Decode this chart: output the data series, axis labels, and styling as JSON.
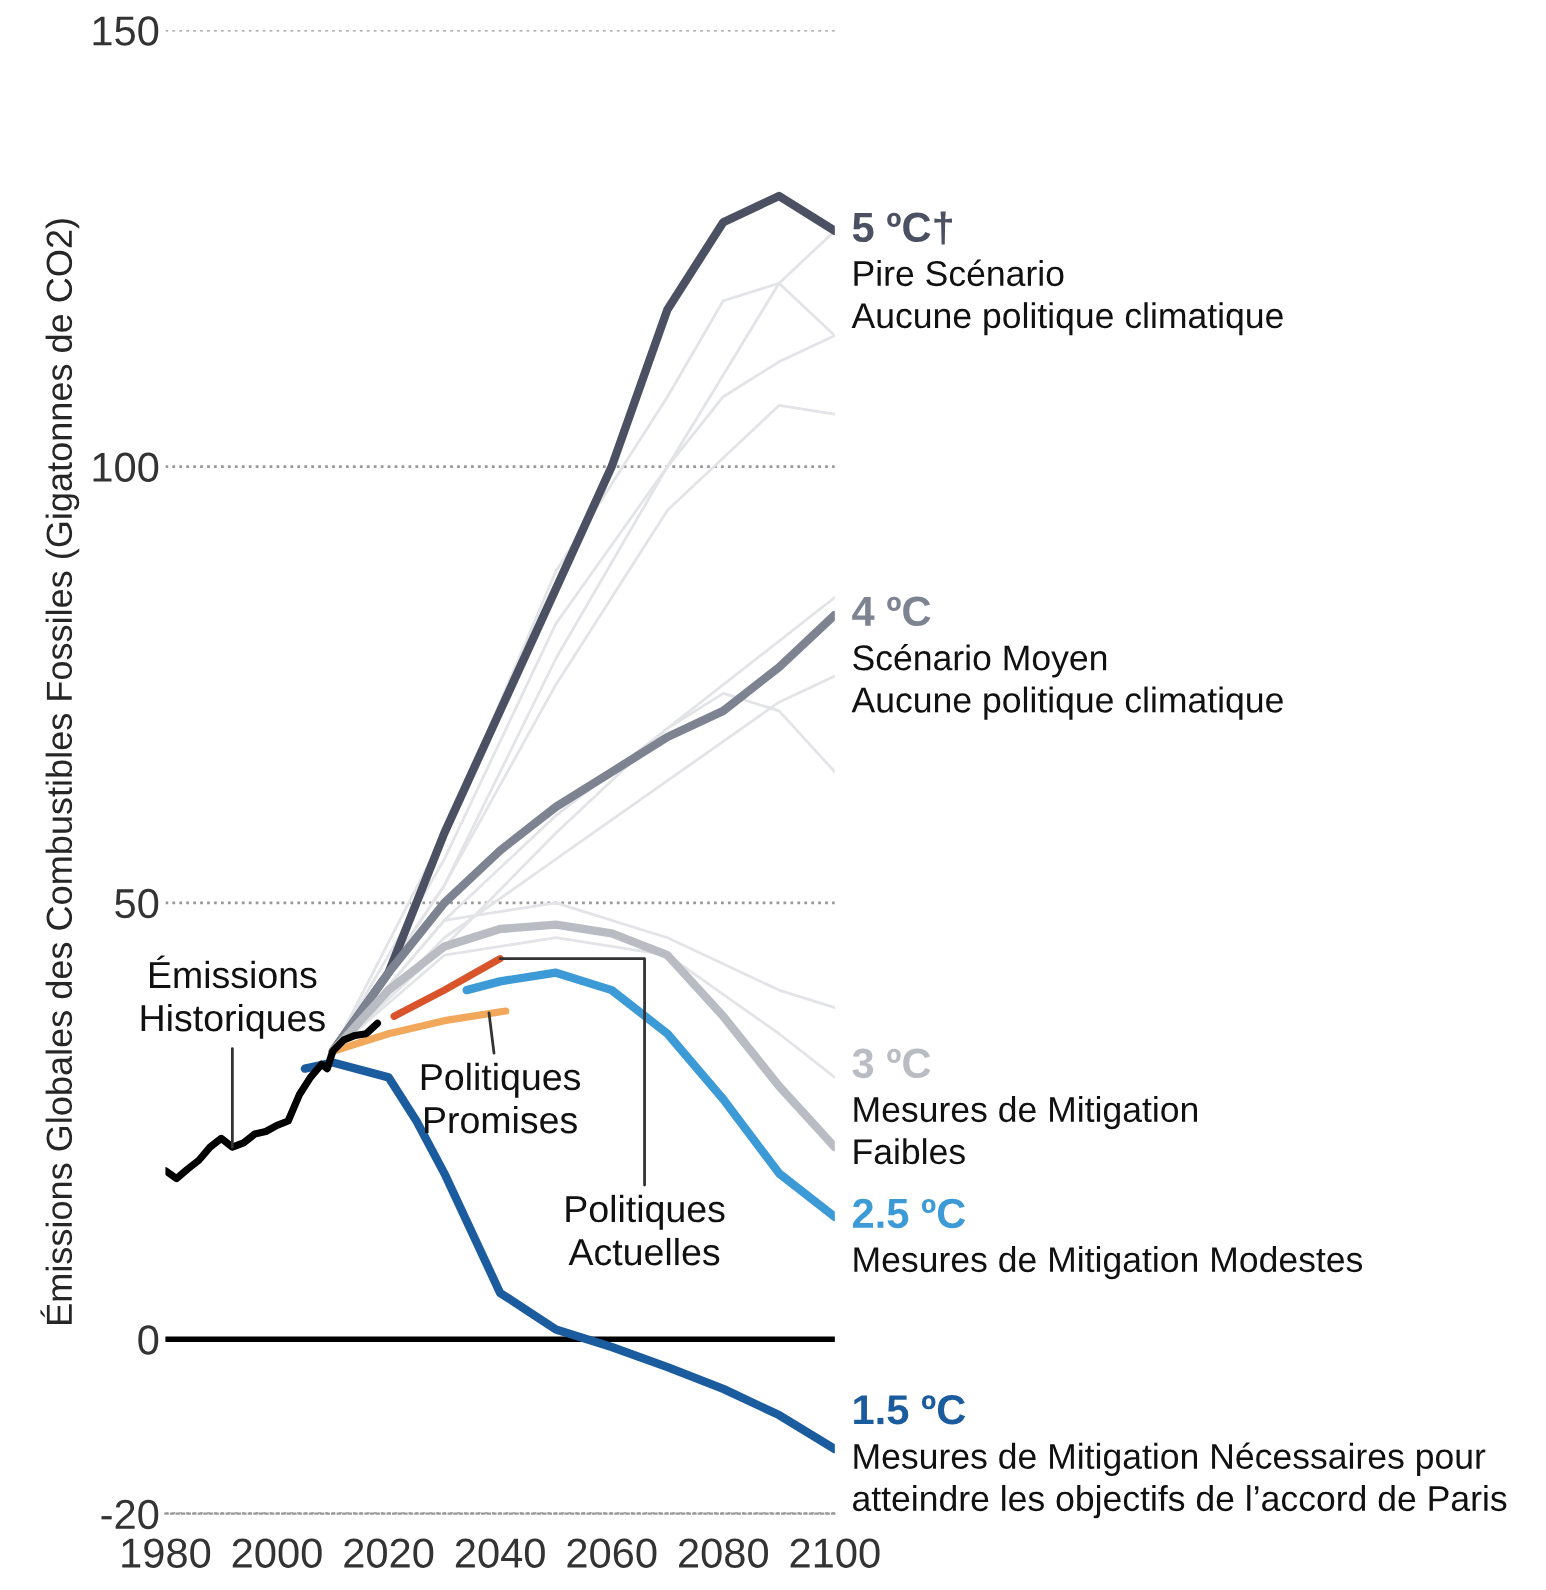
{
  "chart_data": {
    "type": "line",
    "ylabel": "Émissions Globales des Combustibles Fossiles (Gigatonnes de CO2)",
    "xlim": [
      1980,
      2100
    ],
    "xticks": [
      1980,
      2000,
      2020,
      2040,
      2060,
      2080,
      2100
    ],
    "ylim": [
      -20,
      150
    ],
    "yticks": [
      -20,
      0,
      50,
      100,
      150
    ],
    "grid": "y",
    "legend": false,
    "marker": "none",
    "line_style": "solid",
    "ref_lines": [
      {
        "axis": "y",
        "value": 0,
        "color": "#000000",
        "line_style": "solid"
      }
    ],
    "series": [
      {
        "color": "#e3e4e7",
        "x": [
          2010,
          2030,
          2050,
          2070,
          2090,
          2100
        ],
        "values": [
          33,
          52,
          78,
          100,
          121,
          127
        ]
      },
      {
        "color": "#e3e4e7",
        "x": [
          2010,
          2030,
          2050,
          2070,
          2080,
          2090,
          2100
        ],
        "values": [
          33,
          58,
          88,
          108,
          119,
          121,
          115
        ]
      },
      {
        "color": "#e3e4e7",
        "x": [
          2010,
          2030,
          2050,
          2070,
          2080,
          2090,
          2100
        ],
        "values": [
          33,
          55,
          82,
          100,
          108,
          112,
          115
        ]
      },
      {
        "color": "#e3e4e7",
        "x": [
          2010,
          2030,
          2050,
          2070,
          2090,
          2100
        ],
        "values": [
          33,
          52,
          75,
          95,
          107,
          106
        ]
      },
      {
        "color": "#e3e4e7",
        "x": [
          2010,
          2030,
          2050,
          2070,
          2090,
          2100
        ],
        "values": [
          33,
          45,
          58,
          70,
          80,
          85
        ]
      },
      {
        "color": "#e3e4e7",
        "x": [
          2010,
          2030,
          2050,
          2070,
          2080,
          2090,
          2100
        ],
        "values": [
          33,
          48,
          60,
          70,
          74,
          72,
          65
        ]
      },
      {
        "color": "#e3e4e7",
        "x": [
          2010,
          2030,
          2050,
          2070,
          2090,
          2100
        ],
        "values": [
          33,
          46,
          55,
          64,
          73,
          76
        ]
      },
      {
        "color": "#e3e4e7",
        "x": [
          2010,
          2030,
          2050,
          2070,
          2090,
          2100
        ],
        "values": [
          33,
          48,
          50,
          46,
          40,
          38
        ]
      },
      {
        "color": "#e3e4e7",
        "x": [
          2010,
          2030,
          2050,
          2070,
          2090,
          2100
        ],
        "values": [
          33,
          44,
          46,
          44,
          35,
          30
        ]
      },
      {
        "name": "5 ºC†",
        "color": "#4b5162",
        "x": [
          2010,
          2020,
          2030,
          2040,
          2050,
          2060,
          2070,
          2080,
          2090,
          2100
        ],
        "values": [
          33,
          42,
          58,
          72,
          86,
          100,
          118,
          128,
          131,
          127
        ]
      },
      {
        "name": "4 ºC",
        "color": "#7d8391",
        "x": [
          2010,
          2020,
          2030,
          2040,
          2050,
          2060,
          2070,
          2080,
          2090,
          2100
        ],
        "values": [
          33,
          42,
          50,
          56,
          61,
          65,
          69,
          72,
          77,
          83
        ]
      },
      {
        "name": "3 ºC",
        "color": "#b9bcc3",
        "x": [
          2010,
          2020,
          2030,
          2040,
          2050,
          2060,
          2070,
          2080,
          2090,
          2100
        ],
        "values": [
          33,
          40,
          45,
          47,
          47.5,
          46.5,
          44,
          37,
          29,
          22
        ]
      },
      {
        "name": "2.5 ºC",
        "color": "#3c9ad6",
        "x": [
          2034,
          2040,
          2050,
          2060,
          2070,
          2080,
          2090,
          2100
        ],
        "values": [
          40,
          41,
          42,
          40,
          35,
          27.5,
          19,
          14
        ]
      },
      {
        "name": "1.5 ºC",
        "color": "#1b5c9e",
        "x": [
          2005,
          2010,
          2020,
          2025,
          2030,
          2040,
          2050,
          2060,
          2070,
          2080,
          2090,
          2100
        ],
        "values": [
          31,
          31.7,
          30,
          25,
          19,
          5.3,
          1.1,
          -0.9,
          -3.2,
          -5.7,
          -8.7,
          -12.6
        ]
      },
      {
        "color": "#f2a85a",
        "x": [
          2010,
          2020,
          2030,
          2041
        ],
        "values": [
          33,
          35,
          36.5,
          37.6
        ]
      },
      {
        "color": "#d9542a",
        "x": [
          2021,
          2030,
          2040
        ],
        "values": [
          37,
          40,
          43.6
        ]
      },
      {
        "color": "#000000",
        "x": [
          1980,
          1982,
          1984,
          1986,
          1988,
          1990,
          1992,
          1994,
          1996,
          1998,
          2000,
          2002,
          2004,
          2006,
          2008,
          2009,
          2010,
          2012,
          2014,
          2016,
          2018
        ],
        "values": [
          19.3,
          18.4,
          19.5,
          20.5,
          22,
          23,
          22,
          22.5,
          23.5,
          23.8,
          24.5,
          25,
          28,
          30,
          31.5,
          31,
          33,
          34.3,
          34.8,
          35,
          36.2
        ]
      }
    ],
    "annotations": [
      {
        "text": "Pire Scénario\nAucune politique climatique",
        "x": 2100,
        "y": 127
      },
      {
        "text": "Scénario Moyen\nAucune politique climatique",
        "x": 2100,
        "y": 83
      },
      {
        "text": "Mesures de Mitigation\nFaibles",
        "x": 2100,
        "y": 22
      },
      {
        "text": "Mesures de Mitigation Modestes",
        "x": 2100,
        "y": 14
      },
      {
        "text": "Mesures de Mitigation Nécessaires pour\natteindre les objectifs de l’accord de Paris",
        "x": 2100,
        "y": -12.6
      },
      {
        "text": "Émissions\nHistoriques",
        "x": 1992,
        "y": 22
      },
      {
        "text": "Politiques\nPromises",
        "x": 2038,
        "y": 37.4
      },
      {
        "text": "Politiques\nActuelles",
        "x": 2040,
        "y": 43.6
      }
    ]
  }
}
